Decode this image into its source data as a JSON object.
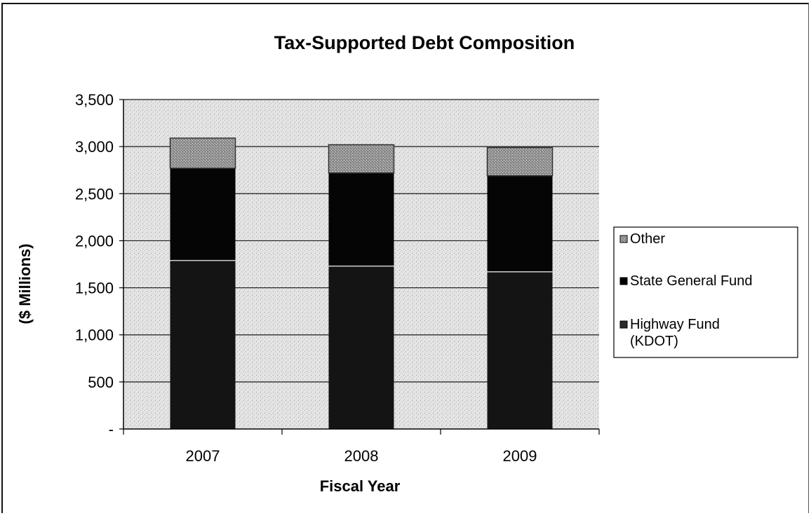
{
  "chart_data": {
    "type": "bar",
    "stacked": true,
    "title": "Tax-Supported Debt Composition",
    "xlabel": "Fiscal Year",
    "ylabel": "($ Millions)",
    "categories": [
      "2007",
      "2008",
      "2009"
    ],
    "ylim": [
      0,
      3500
    ],
    "yticks": [
      0,
      500,
      1000,
      1500,
      2000,
      2500,
      3000,
      3500
    ],
    "ytick_labels": [
      "-",
      "500",
      "1,000",
      "1,500",
      "2,000",
      "2,500",
      "3,000",
      "3,500"
    ],
    "grid": true,
    "legend_position": "right",
    "series": [
      {
        "name": "Highway Fund (KDOT)",
        "values": [
          1790,
          1730,
          1670
        ],
        "color": "#141414"
      },
      {
        "name": "State General Fund",
        "values": [
          980,
          990,
          1020
        ],
        "color": "#050505"
      },
      {
        "name": "Other",
        "values": [
          320,
          300,
          300
        ],
        "color": "#a9a9a9"
      }
    ],
    "legend_order": [
      "Other",
      "State General Fund",
      "Highway Fund (KDOT)"
    ],
    "legend_lines": {
      "Other": [
        "Other"
      ],
      "State General Fund": [
        "State General Fund"
      ],
      "Highway Fund (KDOT)": [
        "Highway Fund",
        "(KDOT)"
      ]
    },
    "plot_background": "#dcdcdc"
  }
}
